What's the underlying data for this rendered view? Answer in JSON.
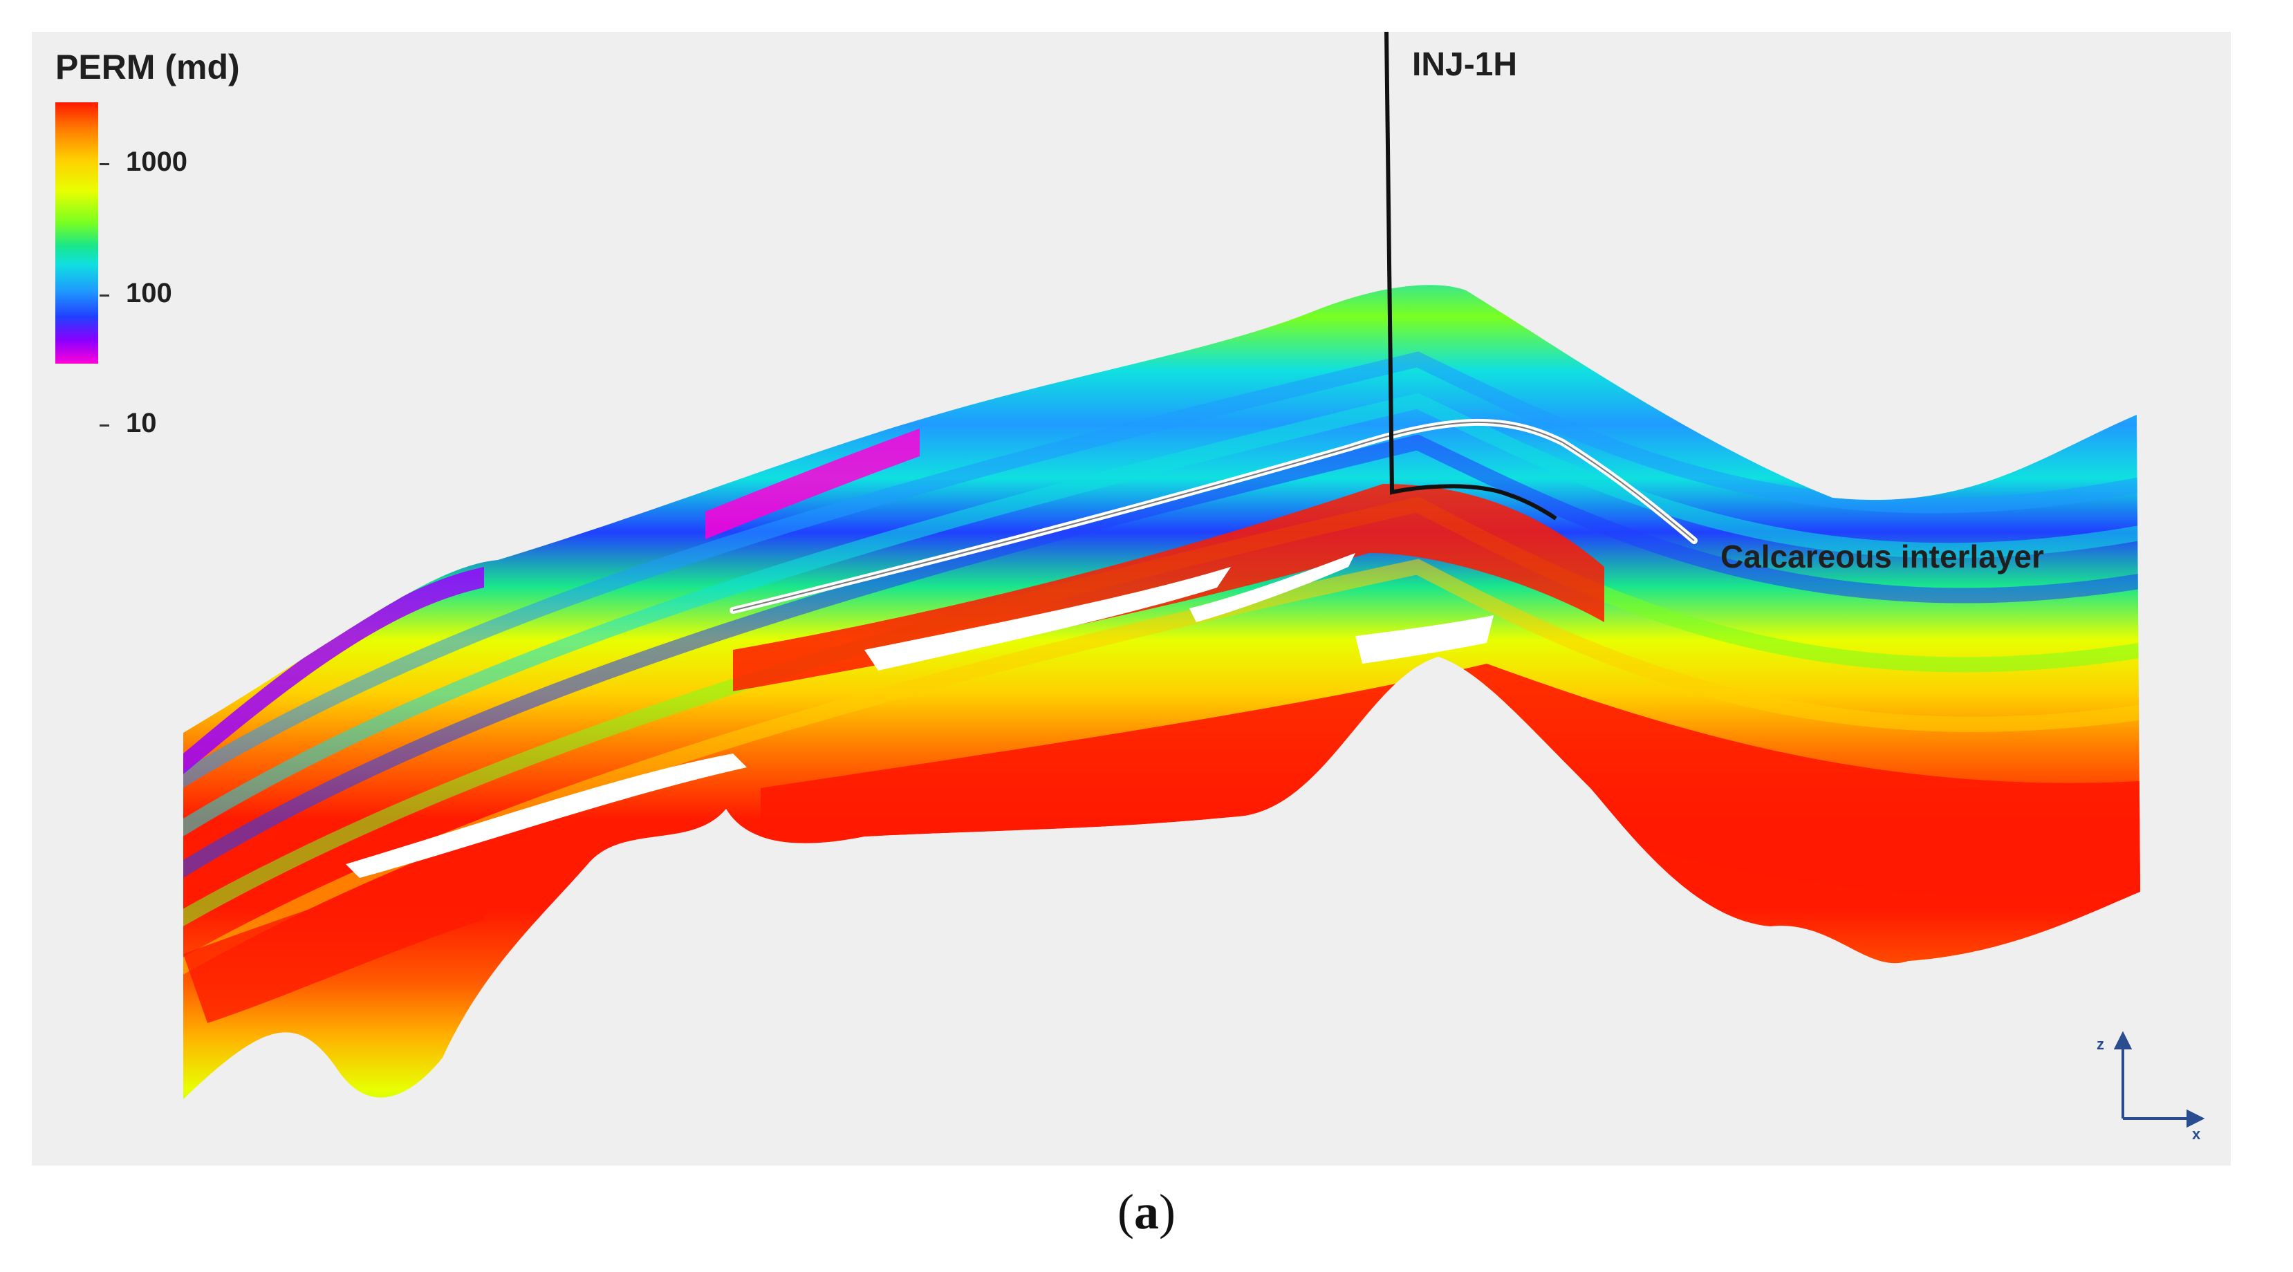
{
  "legend": {
    "title": "PERM (md)",
    "labels": [
      "1000",
      "100",
      "10"
    ],
    "colors": [
      "#ff1a00",
      "#ff7a00",
      "#ffd000",
      "#e8ff00",
      "#7aff20",
      "#19e68c",
      "#10e0e0",
      "#1f9bff",
      "#2040ff",
      "#8a00ff",
      "#ff00d8"
    ]
  },
  "well": {
    "name": "INJ-1H",
    "color": "#111111"
  },
  "interlayer": {
    "label": "Calcareous interlayer",
    "color": "#ffffff"
  },
  "axes": {
    "z": "z",
    "x": "x",
    "color": "#2a4d8f"
  },
  "caption": {
    "open": "(",
    "letter": "a",
    "close": ")"
  },
  "icons": [
    "axis-triad-icon"
  ]
}
